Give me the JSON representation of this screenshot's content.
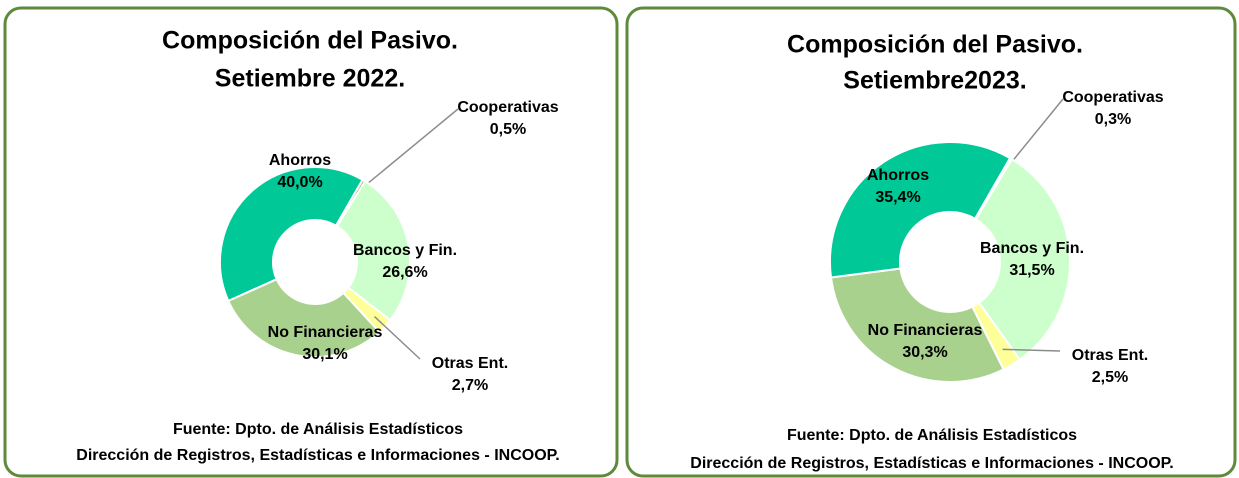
{
  "chart_data": [
    {
      "type": "donut",
      "title": "Composición del Pasivo.",
      "subtitle": "Setiembre 2022.",
      "categories": [
        "Cooperativas",
        "Bancos y Fin.",
        "Otras Ent.",
        "No Financieras",
        "Ahorros"
      ],
      "values": [
        0.5,
        26.6,
        2.7,
        30.1,
        40.0
      ],
      "value_labels": [
        "0,5%",
        "26,6%",
        "2,7%",
        "30,1%",
        "40,0%"
      ],
      "colors": [
        "#8cb84a",
        "#ccffcc",
        "#ffff99",
        "#a9d18e",
        "#00c896"
      ],
      "notes": [
        "Fuente: Dpto. de Análisis Estadísticos",
        "Dirección de Registros, Estadísticas e Informaciones - INCOOP."
      ]
    },
    {
      "type": "donut",
      "title": "Composición del Pasivo.",
      "subtitle": "Setiembre2023.",
      "categories": [
        "Cooperativas",
        "Bancos y Fin.",
        "Otras Ent.",
        "No Financieras",
        "Ahorros"
      ],
      "values": [
        0.3,
        31.5,
        2.5,
        30.3,
        35.4
      ],
      "value_labels": [
        "0,3%",
        "31,5%",
        "2,5%",
        "30,3%",
        "35,4%"
      ],
      "colors": [
        "#8cb84a",
        "#ccffcc",
        "#ffff99",
        "#a9d18e",
        "#00c896"
      ],
      "notes": [
        "Fuente: Dpto. de Análisis Estadísticos",
        "Dirección de Registros, Estadísticas e Informaciones - INCOOP."
      ]
    }
  ]
}
